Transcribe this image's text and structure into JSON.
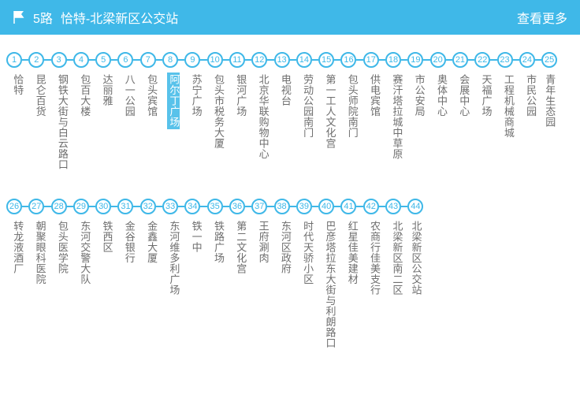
{
  "header": {
    "route": "5路",
    "title": "恰特-北梁新区公交站",
    "more": "查看更多",
    "bg_color": "#3fb8e8"
  },
  "style": {
    "circle_border": "#3fb8e8",
    "circle_text": "#3fb8e8",
    "connector_color": "#3fb8e8",
    "connector_width": 8.3,
    "label_color": "#6e6e6e",
    "highlight_bg": "#58c2ea",
    "highlight_text": "#ffffff"
  },
  "rows": [
    {
      "start": 1,
      "stops": [
        {
          "n": 1,
          "name": "恰特"
        },
        {
          "n": 2,
          "name": "昆仑百货"
        },
        {
          "n": 3,
          "name": "钢铁大街与白云路口"
        },
        {
          "n": 4,
          "name": "包百大楼"
        },
        {
          "n": 5,
          "name": "达丽雅"
        },
        {
          "n": 6,
          "name": "八一公园"
        },
        {
          "n": 7,
          "name": "包头宾馆"
        },
        {
          "n": 8,
          "name": "阿尔丁广场",
          "hl": true
        },
        {
          "n": 9,
          "name": "苏宁广场"
        },
        {
          "n": 10,
          "name": "包头市税务大厦"
        },
        {
          "n": 11,
          "name": "银河广场"
        },
        {
          "n": 12,
          "name": "北京华联购物中心"
        },
        {
          "n": 13,
          "name": "电视台"
        },
        {
          "n": 14,
          "name": "劳动公园南门"
        },
        {
          "n": 15,
          "name": "第一工人文化宫"
        },
        {
          "n": 16,
          "name": "包头师院南门"
        },
        {
          "n": 17,
          "name": "供电宾馆"
        },
        {
          "n": 18,
          "name": "赛汗塔拉城中草原"
        },
        {
          "n": 19,
          "name": "市公安局"
        },
        {
          "n": 20,
          "name": "奥体中心"
        },
        {
          "n": 21,
          "name": "会展中心"
        },
        {
          "n": 22,
          "name": "天福广场"
        },
        {
          "n": 23,
          "name": "工程机械商城"
        },
        {
          "n": 24,
          "name": "市民公园"
        },
        {
          "n": 25,
          "name": "青年生态园"
        }
      ]
    },
    {
      "start": 26,
      "stops": [
        {
          "n": 26,
          "name": "转龙液酒厂"
        },
        {
          "n": 27,
          "name": "朝聚眼科医院"
        },
        {
          "n": 28,
          "name": "包头医学院"
        },
        {
          "n": 29,
          "name": "东河交警大队"
        },
        {
          "n": 30,
          "name": "铁西区"
        },
        {
          "n": 31,
          "name": "金谷银行"
        },
        {
          "n": 32,
          "name": "金鑫大厦"
        },
        {
          "n": 33,
          "name": "东河维多利广场"
        },
        {
          "n": 34,
          "name": "铁一中"
        },
        {
          "n": 35,
          "name": "铁路广场"
        },
        {
          "n": 36,
          "name": "第二文化宫"
        },
        {
          "n": 37,
          "name": "王府涮肉"
        },
        {
          "n": 38,
          "name": "东河区政府"
        },
        {
          "n": 39,
          "name": "时代天骄小区"
        },
        {
          "n": 40,
          "name": "巴彦塔拉东大街与利朗路口"
        },
        {
          "n": 41,
          "name": "红星佳美建材"
        },
        {
          "n": 42,
          "name": "农商行佳美支行"
        },
        {
          "n": 43,
          "name": "北梁新区南二区"
        },
        {
          "n": 44,
          "name": "北梁新区公交站"
        }
      ]
    }
  ]
}
